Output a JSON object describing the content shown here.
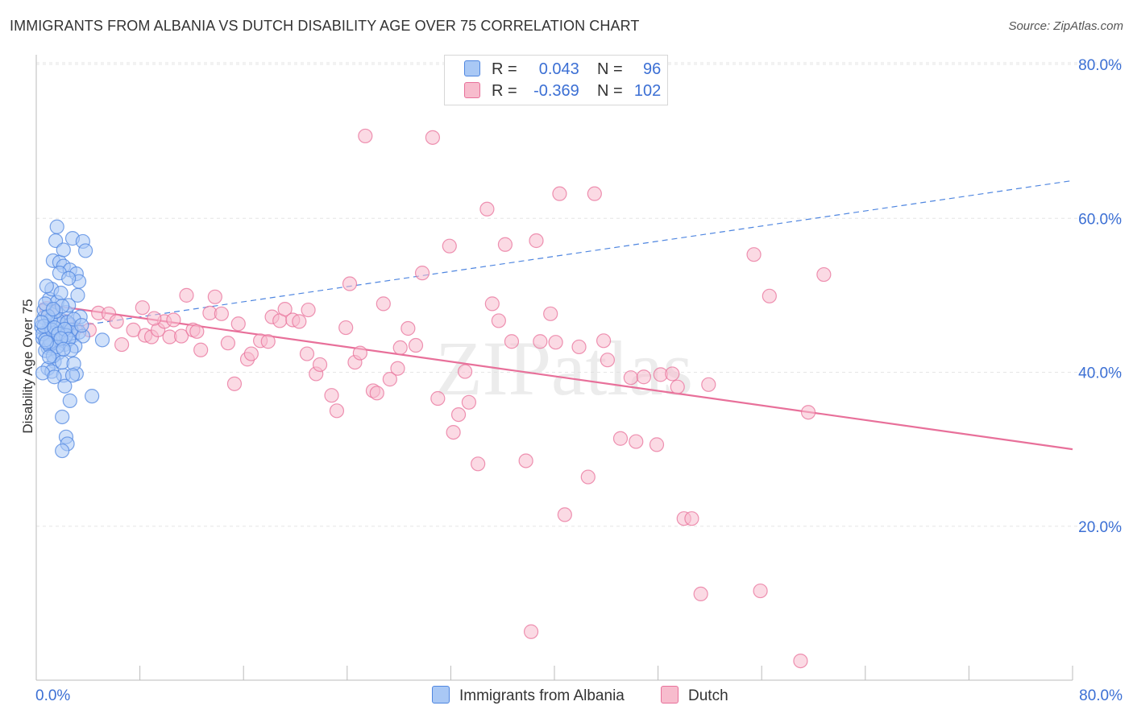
{
  "header": {
    "title": "IMMIGRANTS FROM ALBANIA VS DUTCH DISABILITY AGE OVER 75 CORRELATION CHART",
    "source": "Source: ZipAtlas.com"
  },
  "legend": {
    "rows": [
      {
        "r_label": "R =",
        "r_value": "0.043",
        "n_label": "N =",
        "n_value": "96",
        "color": "#a9c8f5"
      },
      {
        "r_label": "R =",
        "r_value": "-0.369",
        "n_label": "N =",
        "n_value": "102",
        "color": "#f7bccd"
      }
    ]
  },
  "bottom_legend": {
    "series1": "Immigrants from Albania",
    "series2": "Dutch"
  },
  "watermark": "ZIPatlas",
  "chart_data": {
    "type": "scatter",
    "title": "IMMIGRANTS FROM ALBANIA VS DUTCH DISABILITY AGE OVER 75 CORRELATION CHART",
    "xlabel": "",
    "ylabel": "Disability Age Over 75",
    "xlim": [
      0,
      80
    ],
    "ylim": [
      0,
      80
    ],
    "x_tick_labels": [
      "0.0%",
      "80.0%"
    ],
    "y_tick_labels": [
      "20.0%",
      "40.0%",
      "60.0%",
      "80.0%"
    ],
    "y_ticks": [
      20,
      40,
      60,
      80
    ],
    "grid": true,
    "legend_position": "top-center",
    "colors": {
      "albania": "#4f86e0",
      "albania_fill": "#a9c8f5",
      "dutch": "#e8709a",
      "dutch_fill": "#f7bccd",
      "axis_text": "#3b6fd4"
    },
    "series": [
      {
        "name": "Immigrants from Albania",
        "R": 0.043,
        "N": 96,
        "trend": {
          "x": [
            0.3,
            80
          ],
          "y": [
            45.3,
            64.9
          ],
          "style": "dashed"
        },
        "points": [
          [
            0.5,
            44.4
          ],
          [
            0.8,
            45.2
          ],
          [
            1.0,
            46.1
          ],
          [
            1.2,
            43.8
          ],
          [
            1.4,
            44.9
          ],
          [
            0.6,
            47.1
          ],
          [
            0.9,
            43.2
          ],
          [
            1.1,
            45.7
          ],
          [
            1.6,
            46.3
          ],
          [
            1.8,
            44.1
          ],
          [
            0.7,
            42.8
          ],
          [
            1.3,
            47.6
          ],
          [
            2.0,
            45.4
          ],
          [
            2.2,
            43.6
          ],
          [
            0.4,
            45.9
          ],
          [
            1.5,
            44.6
          ],
          [
            1.9,
            46.8
          ],
          [
            2.4,
            45.1
          ],
          [
            0.6,
            48.1
          ],
          [
            1.0,
            49.5
          ],
          [
            1.2,
            50.8
          ],
          [
            0.8,
            51.2
          ],
          [
            2.6,
            46.2
          ],
          [
            2.8,
            44.7
          ],
          [
            1.7,
            42.5
          ],
          [
            1.4,
            41.4
          ],
          [
            0.9,
            40.5
          ],
          [
            1.2,
            40.1
          ],
          [
            2.1,
            39.6
          ],
          [
            3.1,
            39.8
          ],
          [
            1.6,
            49.1
          ],
          [
            2.3,
            47.8
          ],
          [
            2.5,
            48.7
          ],
          [
            3.3,
            45.2
          ],
          [
            3.6,
            44.7
          ],
          [
            1.0,
            43.5
          ],
          [
            1.3,
            42.1
          ],
          [
            2.0,
            41.3
          ],
          [
            2.9,
            41.1
          ],
          [
            0.5,
            39.9
          ],
          [
            1.3,
            54.5
          ],
          [
            1.8,
            54.3
          ],
          [
            2.1,
            53.8
          ],
          [
            2.6,
            53.3
          ],
          [
            1.5,
            57.1
          ],
          [
            2.8,
            57.4
          ],
          [
            1.6,
            58.9
          ],
          [
            3.6,
            57.0
          ],
          [
            3.8,
            55.8
          ],
          [
            2.1,
            55.9
          ],
          [
            1.8,
            52.9
          ],
          [
            3.1,
            52.8
          ],
          [
            3.3,
            51.8
          ],
          [
            2.5,
            52.2
          ],
          [
            1.9,
            50.3
          ],
          [
            3.2,
            50.0
          ],
          [
            1.7,
            46.7
          ],
          [
            2.4,
            46.5
          ],
          [
            2.7,
            45.5
          ],
          [
            1.1,
            44.0
          ],
          [
            2.2,
            38.2
          ],
          [
            4.3,
            36.9
          ],
          [
            2.6,
            36.3
          ],
          [
            2.0,
            34.2
          ],
          [
            2.3,
            31.6
          ],
          [
            2.4,
            30.7
          ],
          [
            2.0,
            29.8
          ],
          [
            5.1,
            44.2
          ],
          [
            2.8,
            39.6
          ],
          [
            1.4,
            39.4
          ],
          [
            0.5,
            45.0
          ],
          [
            0.7,
            44.2
          ],
          [
            1.1,
            46.8
          ],
          [
            1.5,
            47.9
          ],
          [
            2.0,
            48.6
          ],
          [
            0.9,
            47.3
          ],
          [
            1.2,
            45.5
          ],
          [
            1.6,
            43.3
          ],
          [
            2.3,
            44.8
          ],
          [
            3.0,
            43.4
          ],
          [
            0.6,
            46.0
          ],
          [
            0.8,
            43.9
          ],
          [
            1.4,
            45.8
          ],
          [
            1.7,
            45.0
          ],
          [
            2.2,
            45.6
          ],
          [
            2.5,
            44.3
          ],
          [
            3.4,
            47.2
          ],
          [
            2.9,
            46.9
          ],
          [
            1.9,
            44.4
          ],
          [
            1.0,
            42.0
          ],
          [
            0.4,
            46.5
          ],
          [
            0.7,
            48.9
          ],
          [
            1.3,
            48.2
          ],
          [
            2.7,
            42.9
          ],
          [
            3.5,
            46.1
          ],
          [
            2.1,
            43.0
          ]
        ]
      },
      {
        "name": "Dutch",
        "R": -0.369,
        "N": 102,
        "trend": {
          "x": [
            0.3,
            80
          ],
          "y": [
            48.9,
            30.0
          ],
          "style": "solid"
        },
        "points": [
          [
            0.8,
            48.3
          ],
          [
            1.5,
            47.9
          ],
          [
            2.3,
            46.6
          ],
          [
            3.0,
            45.6
          ],
          [
            4.1,
            45.5
          ],
          [
            4.8,
            47.7
          ],
          [
            5.6,
            47.6
          ],
          [
            6.2,
            46.6
          ],
          [
            6.6,
            43.6
          ],
          [
            7.5,
            45.5
          ],
          [
            8.4,
            44.8
          ],
          [
            8.2,
            48.4
          ],
          [
            8.9,
            44.6
          ],
          [
            9.4,
            45.5
          ],
          [
            9.9,
            46.6
          ],
          [
            10.3,
            44.6
          ],
          [
            10.6,
            46.8
          ],
          [
            11.2,
            44.7
          ],
          [
            11.6,
            50.0
          ],
          [
            12.1,
            45.5
          ],
          [
            12.4,
            45.3
          ],
          [
            12.7,
            42.9
          ],
          [
            13.4,
            47.7
          ],
          [
            13.8,
            49.8
          ],
          [
            14.3,
            47.6
          ],
          [
            14.8,
            43.8
          ],
          [
            15.3,
            38.5
          ],
          [
            15.6,
            46.3
          ],
          [
            16.3,
            41.7
          ],
          [
            16.6,
            42.4
          ],
          [
            17.3,
            44.1
          ],
          [
            17.9,
            44.0
          ],
          [
            18.2,
            47.2
          ],
          [
            18.8,
            46.7
          ],
          [
            19.2,
            48.2
          ],
          [
            19.8,
            46.8
          ],
          [
            20.3,
            46.6
          ],
          [
            20.9,
            42.4
          ],
          [
            21.6,
            39.8
          ],
          [
            21.9,
            41.0
          ],
          [
            22.8,
            37.0
          ],
          [
            23.2,
            35.0
          ],
          [
            23.9,
            45.8
          ],
          [
            24.2,
            51.5
          ],
          [
            24.6,
            41.3
          ],
          [
            25.0,
            42.5
          ],
          [
            25.4,
            70.7
          ],
          [
            26.0,
            37.6
          ],
          [
            26.3,
            37.3
          ],
          [
            26.8,
            48.9
          ],
          [
            27.3,
            39.1
          ],
          [
            27.9,
            40.5
          ],
          [
            28.1,
            43.2
          ],
          [
            28.7,
            45.7
          ],
          [
            29.3,
            43.5
          ],
          [
            29.8,
            52.9
          ],
          [
            30.6,
            70.5
          ],
          [
            31.0,
            36.6
          ],
          [
            31.9,
            56.4
          ],
          [
            32.2,
            32.2
          ],
          [
            32.6,
            34.5
          ],
          [
            33.1,
            40.1
          ],
          [
            33.4,
            36.1
          ],
          [
            34.1,
            28.1
          ],
          [
            34.8,
            61.2
          ],
          [
            35.2,
            48.9
          ],
          [
            35.7,
            46.7
          ],
          [
            36.2,
            56.6
          ],
          [
            36.7,
            44.0
          ],
          [
            37.8,
            28.5
          ],
          [
            38.2,
            6.3
          ],
          [
            38.6,
            57.1
          ],
          [
            38.9,
            44.0
          ],
          [
            39.7,
            47.6
          ],
          [
            40.1,
            43.9
          ],
          [
            40.4,
            63.2
          ],
          [
            40.8,
            21.5
          ],
          [
            41.9,
            43.3
          ],
          [
            42.6,
            26.4
          ],
          [
            43.1,
            63.2
          ],
          [
            43.8,
            44.1
          ],
          [
            44.1,
            41.6
          ],
          [
            45.1,
            31.4
          ],
          [
            45.9,
            39.3
          ],
          [
            46.3,
            31.0
          ],
          [
            46.9,
            39.4
          ],
          [
            47.9,
            30.6
          ],
          [
            48.2,
            39.7
          ],
          [
            49.1,
            39.8
          ],
          [
            49.5,
            38.1
          ],
          [
            50.0,
            21.0
          ],
          [
            50.6,
            21.0
          ],
          [
            51.3,
            11.2
          ],
          [
            51.9,
            38.4
          ],
          [
            55.4,
            55.3
          ],
          [
            55.9,
            11.6
          ],
          [
            56.6,
            49.9
          ],
          [
            59.0,
            2.5
          ],
          [
            59.6,
            34.8
          ],
          [
            60.8,
            52.7
          ],
          [
            21.0,
            48.1
          ],
          [
            9.1,
            47.0
          ]
        ]
      }
    ]
  }
}
